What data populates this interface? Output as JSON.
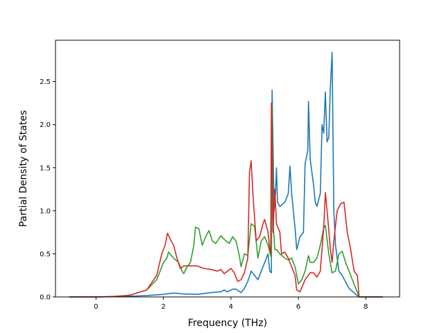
{
  "chart_data": {
    "type": "line",
    "title": "",
    "xlabel": "Frequency (THz)",
    "ylabel": "Partial Density of States",
    "xlim": [
      -1.2,
      9.0
    ],
    "ylim": [
      0.0,
      2.98
    ],
    "xticks": [
      0,
      2,
      4,
      6,
      8
    ],
    "yticks": [
      0.0,
      0.5,
      1.0,
      1.5,
      2.0,
      2.5
    ],
    "xtick_labels": [
      "0",
      "2",
      "4",
      "6",
      "8"
    ],
    "ytick_labels": [
      "0.0",
      "0.5",
      "1.0",
      "1.5",
      "2.0",
      "2.5"
    ],
    "grid": false,
    "legend": false,
    "series": [
      {
        "color": "#1f77b4",
        "points": [
          [
            -0.8,
            0
          ],
          [
            0,
            0
          ],
          [
            0.5,
            0.003
          ],
          [
            1.0,
            0.008
          ],
          [
            1.5,
            0.015
          ],
          [
            2.0,
            0.03
          ],
          [
            2.3,
            0.045
          ],
          [
            2.6,
            0.035
          ],
          [
            3.0,
            0.03
          ],
          [
            3.4,
            0.05
          ],
          [
            3.7,
            0.06
          ],
          [
            3.8,
            0.08
          ],
          [
            3.9,
            0.06
          ],
          [
            4.05,
            0.09
          ],
          [
            4.15,
            0.09
          ],
          [
            4.3,
            0.05
          ],
          [
            4.4,
            0.1
          ],
          [
            4.5,
            0.18
          ],
          [
            4.6,
            0.3
          ],
          [
            4.7,
            0.25
          ],
          [
            4.8,
            0.2
          ],
          [
            4.9,
            0.3
          ],
          [
            5.0,
            0.4
          ],
          [
            5.1,
            0.5
          ],
          [
            5.15,
            0.3
          ],
          [
            5.2,
            0.28
          ],
          [
            5.22,
            2.4
          ],
          [
            5.26,
            1.5
          ],
          [
            5.28,
            1.0
          ],
          [
            5.32,
            1.2
          ],
          [
            5.35,
            1.5
          ],
          [
            5.38,
            1.1
          ],
          [
            5.45,
            1.05
          ],
          [
            5.6,
            1.1
          ],
          [
            5.7,
            1.2
          ],
          [
            5.75,
            1.52
          ],
          [
            5.8,
            1.2
          ],
          [
            5.9,
            0.8
          ],
          [
            5.95,
            0.55
          ],
          [
            6.05,
            0.7
          ],
          [
            6.15,
            0.75
          ],
          [
            6.2,
            1.55
          ],
          [
            6.28,
            1.7
          ],
          [
            6.3,
            2.27
          ],
          [
            6.35,
            1.6
          ],
          [
            6.45,
            1.3
          ],
          [
            6.5,
            1.1
          ],
          [
            6.55,
            1.05
          ],
          [
            6.65,
            1.2
          ],
          [
            6.7,
            2.0
          ],
          [
            6.75,
            1.9
          ],
          [
            6.8,
            2.38
          ],
          [
            6.85,
            1.8
          ],
          [
            6.9,
            1.85
          ],
          [
            6.95,
            2.45
          ],
          [
            7.0,
            2.84
          ],
          [
            7.05,
            1.0
          ],
          [
            7.1,
            0.6
          ],
          [
            7.2,
            0.3
          ],
          [
            7.3,
            0.25
          ],
          [
            7.5,
            0.1
          ],
          [
            7.7,
            0.03
          ],
          [
            7.8,
            0
          ],
          [
            8.5,
            0
          ]
        ]
      },
      {
        "color": "#2ca02c",
        "points": [
          [
            -0.8,
            0
          ],
          [
            0,
            0
          ],
          [
            0.5,
            0.005
          ],
          [
            1.0,
            0.02
          ],
          [
            1.5,
            0.08
          ],
          [
            1.8,
            0.2
          ],
          [
            2.0,
            0.4
          ],
          [
            2.1,
            0.45
          ],
          [
            2.15,
            0.52
          ],
          [
            2.3,
            0.45
          ],
          [
            2.45,
            0.4
          ],
          [
            2.55,
            0.3
          ],
          [
            2.6,
            0.27
          ],
          [
            2.7,
            0.35
          ],
          [
            2.8,
            0.4
          ],
          [
            2.9,
            0.6
          ],
          [
            2.95,
            0.81
          ],
          [
            3.05,
            0.79
          ],
          [
            3.15,
            0.6
          ],
          [
            3.25,
            0.7
          ],
          [
            3.35,
            0.77
          ],
          [
            3.45,
            0.65
          ],
          [
            3.55,
            0.62
          ],
          [
            3.7,
            0.71
          ],
          [
            3.85,
            0.65
          ],
          [
            3.95,
            0.62
          ],
          [
            4.05,
            0.7
          ],
          [
            4.15,
            0.65
          ],
          [
            4.25,
            0.48
          ],
          [
            4.3,
            0.35
          ],
          [
            4.4,
            0.5
          ],
          [
            4.5,
            0.48
          ],
          [
            4.6,
            0.85
          ],
          [
            4.7,
            0.82
          ],
          [
            4.8,
            0.45
          ],
          [
            4.9,
            0.65
          ],
          [
            5.0,
            0.7
          ],
          [
            5.1,
            0.6
          ],
          [
            5.2,
            0.45
          ],
          [
            5.22,
            2.23
          ],
          [
            5.26,
            0.8
          ],
          [
            5.3,
            0.55
          ],
          [
            5.35,
            0.55
          ],
          [
            5.45,
            0.5
          ],
          [
            5.6,
            0.45
          ],
          [
            5.7,
            0.43
          ],
          [
            5.8,
            0.45
          ],
          [
            5.9,
            0.35
          ],
          [
            6.0,
            0.15
          ],
          [
            6.1,
            0.2
          ],
          [
            6.2,
            0.3
          ],
          [
            6.3,
            0.48
          ],
          [
            6.35,
            0.4
          ],
          [
            6.45,
            0.4
          ],
          [
            6.55,
            0.45
          ],
          [
            6.65,
            0.6
          ],
          [
            6.75,
            0.8
          ],
          [
            6.8,
            0.83
          ],
          [
            6.9,
            0.5
          ],
          [
            7.0,
            0.28
          ],
          [
            7.1,
            0.3
          ],
          [
            7.2,
            0.5
          ],
          [
            7.3,
            0.53
          ],
          [
            7.4,
            0.4
          ],
          [
            7.5,
            0.3
          ],
          [
            7.6,
            0.2
          ],
          [
            7.7,
            0.1
          ],
          [
            7.8,
            0
          ],
          [
            8.5,
            0
          ]
        ]
      },
      {
        "color": "#d62728",
        "points": [
          [
            -0.8,
            0
          ],
          [
            0,
            0
          ],
          [
            0.5,
            0.005
          ],
          [
            1.0,
            0.02
          ],
          [
            1.5,
            0.08
          ],
          [
            1.8,
            0.25
          ],
          [
            1.95,
            0.5
          ],
          [
            2.05,
            0.6
          ],
          [
            2.12,
            0.74
          ],
          [
            2.2,
            0.67
          ],
          [
            2.3,
            0.6
          ],
          [
            2.4,
            0.45
          ],
          [
            2.5,
            0.33
          ],
          [
            2.6,
            0.36
          ],
          [
            2.8,
            0.36
          ],
          [
            3.0,
            0.36
          ],
          [
            3.2,
            0.33
          ],
          [
            3.4,
            0.32
          ],
          [
            3.6,
            0.3
          ],
          [
            3.7,
            0.32
          ],
          [
            3.8,
            0.27
          ],
          [
            3.9,
            0.3
          ],
          [
            4.0,
            0.33
          ],
          [
            4.1,
            0.28
          ],
          [
            4.2,
            0.18
          ],
          [
            4.3,
            0.2
          ],
          [
            4.4,
            0.28
          ],
          [
            4.5,
            0.45
          ],
          [
            4.55,
            1.45
          ],
          [
            4.6,
            1.58
          ],
          [
            4.65,
            1.2
          ],
          [
            4.75,
            0.65
          ],
          [
            4.85,
            0.7
          ],
          [
            4.95,
            0.85
          ],
          [
            5.0,
            0.9
          ],
          [
            5.1,
            0.75
          ],
          [
            5.15,
            0.55
          ],
          [
            5.18,
            0.5
          ],
          [
            5.2,
            2.25
          ],
          [
            5.25,
            0.75
          ],
          [
            5.3,
            1.25
          ],
          [
            5.35,
            0.85
          ],
          [
            5.45,
            0.75
          ],
          [
            5.5,
            0.5
          ],
          [
            5.6,
            0.52
          ],
          [
            5.7,
            0.45
          ],
          [
            5.8,
            0.35
          ],
          [
            5.9,
            0.25
          ],
          [
            5.95,
            0.08
          ],
          [
            6.05,
            0.06
          ],
          [
            6.2,
            0.2
          ],
          [
            6.35,
            0.28
          ],
          [
            6.45,
            0.28
          ],
          [
            6.55,
            0.23
          ],
          [
            6.65,
            0.3
          ],
          [
            6.75,
            0.8
          ],
          [
            6.8,
            1.21
          ],
          [
            6.85,
            1.0
          ],
          [
            6.95,
            0.55
          ],
          [
            7.0,
            0.4
          ],
          [
            7.05,
            0.65
          ],
          [
            7.15,
            1.0
          ],
          [
            7.25,
            1.08
          ],
          [
            7.35,
            1.1
          ],
          [
            7.45,
            0.75
          ],
          [
            7.55,
            0.55
          ],
          [
            7.65,
            0.3
          ],
          [
            7.75,
            0.25
          ],
          [
            7.8,
            0
          ],
          [
            8.5,
            0
          ]
        ]
      }
    ]
  }
}
